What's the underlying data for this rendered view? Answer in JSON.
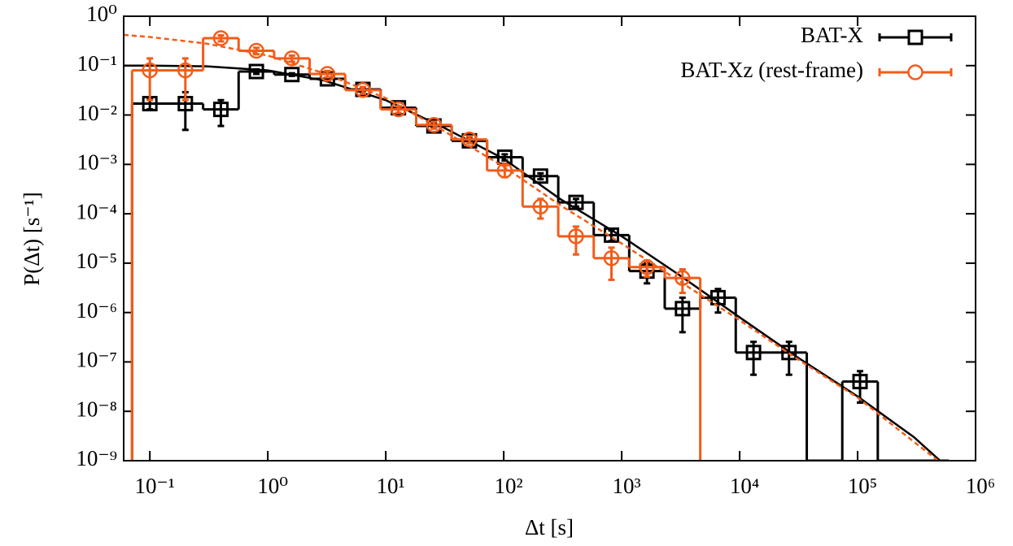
{
  "chart_data": {
    "type": "histogram-loglog",
    "xlabel": "Δt [s]",
    "ylabel": "P(Δt) [s⁻¹]",
    "xlim": [
      0.06,
      1000000
    ],
    "ylim": [
      1e-09,
      1
    ],
    "xlog": true,
    "ylog": true,
    "xticks": [
      {
        "value": 0.1,
        "label": "10⁻¹"
      },
      {
        "value": 1,
        "label": "10⁰"
      },
      {
        "value": 10,
        "label": "10¹"
      },
      {
        "value": 100,
        "label": "10²"
      },
      {
        "value": 1000,
        "label": "10³"
      },
      {
        "value": 10000,
        "label": "10⁴"
      },
      {
        "value": 100000,
        "label": "10⁵"
      },
      {
        "value": 1000000,
        "label": "10⁶"
      }
    ],
    "yticks": [
      {
        "value": 1e-09,
        "label": "10⁻⁹"
      },
      {
        "value": 1e-08,
        "label": "10⁻⁸"
      },
      {
        "value": 1e-07,
        "label": "10⁻⁷"
      },
      {
        "value": 1e-06,
        "label": "10⁻⁶"
      },
      {
        "value": 1e-05,
        "label": "10⁻⁵"
      },
      {
        "value": 0.0001,
        "label": "10⁻⁴"
      },
      {
        "value": 0.001,
        "label": "10⁻³"
      },
      {
        "value": 0.01,
        "label": "10⁻²"
      },
      {
        "value": 0.1,
        "label": "10⁻¹"
      },
      {
        "value": 1,
        "label": "10⁰"
      }
    ],
    "legend": "top-right",
    "series": [
      {
        "name": "BAT-X",
        "color": "#000000",
        "marker": "square",
        "x": [
          0.1,
          0.2,
          0.4,
          0.8,
          1.6,
          3.2,
          6.4,
          12.8,
          25.6,
          51.2,
          102,
          205,
          410,
          819,
          1638,
          3277,
          6554,
          13107,
          26214,
          52429,
          104858,
          209715,
          419430
        ],
        "values": [
          0.017,
          0.017,
          0.013,
          0.076,
          0.066,
          0.054,
          0.033,
          0.014,
          0.006,
          0.003,
          0.0014,
          0.00058,
          0.00017,
          3.7e-05,
          6.9e-06,
          1.2e-06,
          2e-06,
          1.55e-07,
          1.55e-07,
          null,
          4e-08,
          null,
          null
        ],
        "errors": [
          0.004,
          0.012,
          0.007,
          0.008,
          0.004,
          0.003,
          0.002,
          0.001,
          0.0005,
          0.0003,
          0.0002,
          8e-05,
          3e-05,
          9e-06,
          3e-06,
          8e-07,
          1e-06,
          1e-07,
          1e-07,
          null,
          2.5e-08,
          null,
          null
        ],
        "fit": {
          "dash": false,
          "x": [
            0.06,
            0.1,
            0.3,
            1,
            3,
            10,
            30,
            100,
            300,
            1000,
            3000,
            10000,
            30000,
            100000,
            300000,
            500000
          ],
          "values": [
            0.1,
            0.1,
            0.097,
            0.08,
            0.05,
            0.02,
            0.0058,
            0.0013,
            0.0002,
            3.5e-05,
            6e-06,
            8e-07,
            1.3e-07,
            2e-08,
            3e-09,
            1e-09
          ]
        }
      },
      {
        "name": "BAT-Xz (rest-frame)",
        "color": "#f25c19",
        "marker": "circle",
        "x": [
          0.1,
          0.2,
          0.4,
          0.8,
          1.6,
          3.2,
          6.4,
          12.8,
          25.6,
          51.2,
          102,
          205,
          410,
          819,
          1638,
          3277
        ],
        "values": [
          0.08,
          0.08,
          0.36,
          0.2,
          0.14,
          0.068,
          0.032,
          0.013,
          0.0063,
          0.0032,
          0.00075,
          0.00014,
          3.5e-05,
          1.26e-05,
          8.3e-06,
          5e-06
        ],
        "errors": [
          0.06,
          0.06,
          0.05,
          0.03,
          0.02,
          0.01,
          0.005,
          0.002,
          0.001,
          0.0005,
          0.0002,
          6e-05,
          2e-05,
          8e-06,
          3e-06,
          2.5e-06
        ],
        "fit": {
          "dash": true,
          "x": [
            0.06,
            0.1,
            0.3,
            1,
            3,
            10,
            30,
            100,
            300,
            1000,
            3000,
            10000,
            30000,
            100000,
            480000
          ],
          "values": [
            0.42,
            0.38,
            0.28,
            0.16,
            0.07,
            0.022,
            0.005,
            0.0009,
            0.00015,
            2.5e-05,
            4.5e-06,
            7e-07,
            1.2e-07,
            1.9e-08,
            1e-09
          ]
        }
      }
    ]
  }
}
